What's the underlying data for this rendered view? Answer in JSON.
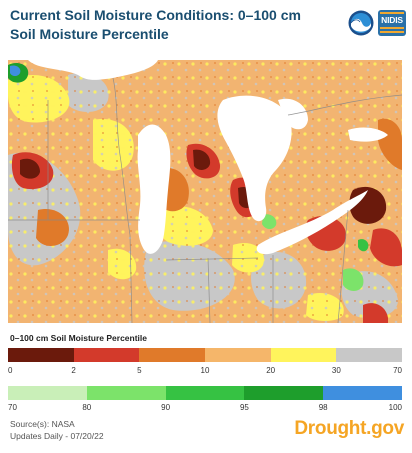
{
  "header": {
    "title": "Current Soil Moisture Conditions: 0–100 cm Soil Moisture Percentile",
    "logo_noaa": "noaa-logo",
    "logo_nidis": "NIDIS"
  },
  "map": {
    "region_features": [
      "lake-michigan",
      "lake-huron",
      "lake-erie",
      "lake-superior",
      "michigan-lower-peninsula",
      "wisconsin",
      "ohio",
      "indiana",
      "ontario"
    ],
    "colors": {
      "water": "#ffffff",
      "base": "#f2b471",
      "severe": "#6b1a0c",
      "extreme": "#d33a2b",
      "moderate": "#e07a2a",
      "mild": "#f5b66a",
      "near_normal": "#fff45c",
      "normal": "#c8c8c8",
      "wet_light": "#c9efb8",
      "wet": "#7ce36a",
      "wetter": "#36c243",
      "very_wet": "#1e9e2c",
      "extremely_wet": "#3f8fdf",
      "boundary": "#8a8a8a"
    }
  },
  "legend": {
    "title": "0–100 cm Soil Moisture Percentile",
    "row1": {
      "colors": [
        "#6b1a0c",
        "#d33a2b",
        "#e07a2a",
        "#f5b66a",
        "#fff45c",
        "#c8c8c8"
      ],
      "ticks": [
        "0",
        "2",
        "5",
        "10",
        "20",
        "30",
        "70"
      ]
    },
    "row2": {
      "colors": [
        "#c9efb8",
        "#7ce36a",
        "#36c243",
        "#1e9e2c",
        "#3f8fdf"
      ],
      "ticks": [
        "70",
        "80",
        "90",
        "95",
        "98",
        "100"
      ]
    }
  },
  "footer": {
    "source": "Source(s): NASA",
    "updated": "Updates Daily - 07/20/22",
    "brand": "Drought.gov"
  }
}
